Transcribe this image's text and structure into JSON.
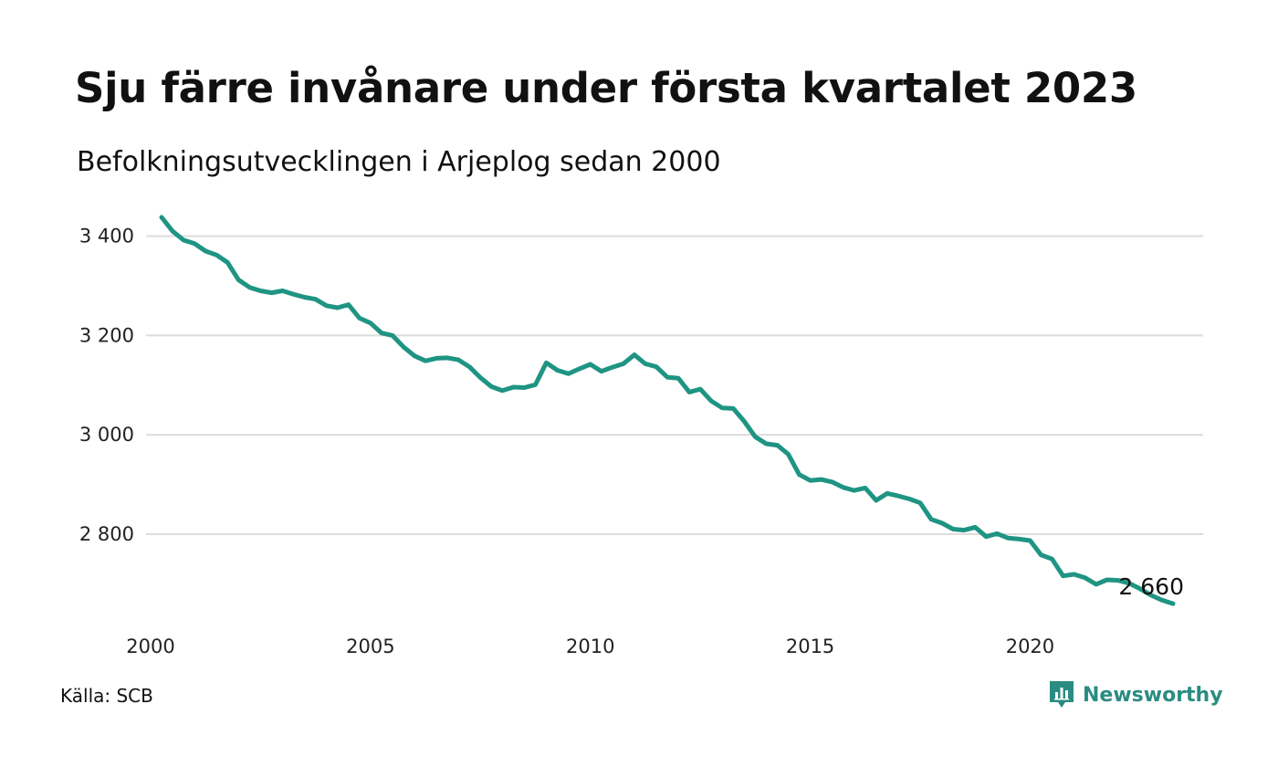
{
  "title": "Sju färre invånare under första kvartalet 2023",
  "subtitle": "Befolkningsutvecklingen i Arjeplog sedan 2000",
  "source": "Källa: SCB",
  "brand": {
    "name": "Newsworthy",
    "icon": "newsworthy-logo-icon",
    "color": "#2a8c82"
  },
  "chart_data": {
    "type": "line",
    "title": "Sju färre invånare under första kvartalet 2023",
    "subtitle": "Befolkningsutvecklingen i Arjeplog sedan 2000",
    "xlabel": "",
    "ylabel": "",
    "line_color": "#1f9483",
    "grid": true,
    "xlim": [
      2000,
      2023.25
    ],
    "ylim": [
      2640,
      3460
    ],
    "y_ticks": [
      2800,
      3000,
      3200,
      3400
    ],
    "y_tick_labels": [
      "2 800",
      "3 000",
      "3 200",
      "3 400"
    ],
    "x_ticks": [
      2000,
      2005,
      2010,
      2015,
      2020
    ],
    "x_tick_labels": [
      "2000",
      "2005",
      "2010",
      "2015",
      "2020"
    ],
    "end_label": "2 660",
    "series": [
      {
        "x": [
          2000.25,
          2000.5,
          2000.75,
          2001,
          2001.25,
          2001.5,
          2001.75,
          2002,
          2002.25,
          2002.5,
          2002.75,
          2003,
          2003.25,
          2003.5,
          2003.75,
          2004,
          2004.25,
          2004.5,
          2004.75,
          2005,
          2005.25,
          2005.5,
          2005.75,
          2006,
          2006.25,
          2006.5,
          2006.75,
          2007,
          2007.25,
          2007.5,
          2007.75,
          2008,
          2008.25,
          2008.5,
          2008.75,
          2009,
          2009.25,
          2009.5,
          2009.75,
          2010,
          2010.25,
          2010.5,
          2010.75,
          2011,
          2011.25,
          2011.5,
          2011.75,
          2012,
          2012.25,
          2012.5,
          2012.75,
          2013,
          2013.25,
          2013.5,
          2013.75,
          2014,
          2014.25,
          2014.5,
          2014.75,
          2015,
          2015.25,
          2015.5,
          2015.75,
          2016,
          2016.25,
          2016.5,
          2016.75,
          2017,
          2017.25,
          2017.5,
          2017.75,
          2018,
          2018.25,
          2018.5,
          2018.75,
          2019,
          2019.25,
          2019.5,
          2019.75,
          2020,
          2020.25,
          2020.5,
          2020.75,
          2021,
          2021.25,
          2021.5,
          2021.75,
          2022,
          2022.25,
          2022.5,
          2022.75,
          2023,
          2023.25
        ],
        "values": [
          3438,
          3410,
          3392,
          3385,
          3370,
          3362,
          3347,
          3312,
          3297,
          3290,
          3286,
          3290,
          3283,
          3277,
          3273,
          3260,
          3256,
          3262,
          3235,
          3225,
          3205,
          3200,
          3177,
          3159,
          3149,
          3154,
          3155,
          3151,
          3137,
          3115,
          3097,
          3089,
          3096,
          3095,
          3101,
          3145,
          3130,
          3123,
          3133,
          3142,
          3128,
          3136,
          3143,
          3161,
          3143,
          3137,
          3116,
          3114,
          3086,
          3092,
          3068,
          3054,
          3053,
          3027,
          2996,
          2982,
          2979,
          2961,
          2920,
          2908,
          2910,
          2905,
          2894,
          2888,
          2893,
          2868,
          2882,
          2877,
          2871,
          2863,
          2830,
          2822,
          2810,
          2808,
          2814,
          2795,
          2801,
          2792,
          2790,
          2787,
          2758,
          2750,
          2716,
          2719,
          2712,
          2699,
          2708,
          2707,
          2701,
          2690,
          2677,
          2667,
          2660
        ]
      }
    ]
  }
}
